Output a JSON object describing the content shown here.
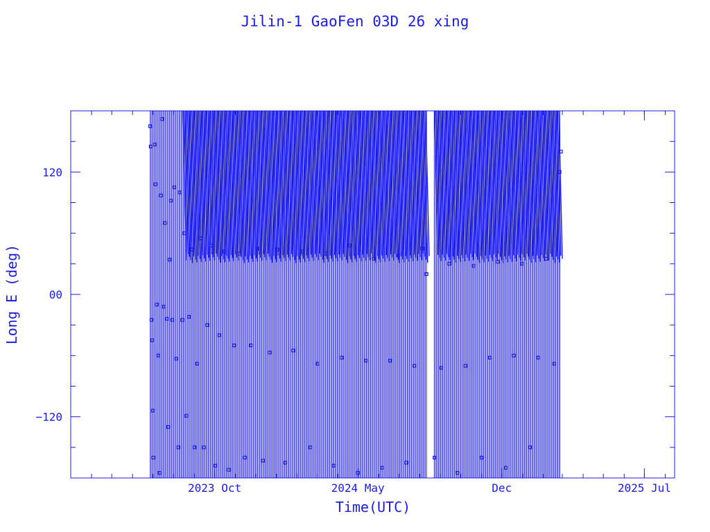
{
  "chart_data": {
    "type": "scatter",
    "title": "Jilin-1 GaoFen 03D 26 xing",
    "xlabel": "Time(UTC)",
    "ylabel": "Long E (deg)",
    "ylim": [
      -180,
      180
    ],
    "xlim": [
      "2023-03-01",
      "2025-08-15"
    ],
    "x_tick_labels": [
      {
        "label": "2023 Oct",
        "date": "2023-10-01"
      },
      {
        "label": "2024 May",
        "date": "2024-05-01"
      },
      {
        "label": "Dec",
        "date": "2024-12-01"
      },
      {
        "label": "2025 Jul",
        "date": "2025-07-01"
      }
    ],
    "y_tick_labels": [
      {
        "label": "120",
        "value": 120
      },
      {
        "label": "00",
        "value": 0
      },
      {
        "label": "−120",
        "value": -120
      }
    ],
    "y_minor_tick_values": [
      -150,
      -90,
      -60,
      -30,
      30,
      60,
      90,
      150
    ],
    "series_color": "#1a1ae6",
    "data_start": "2023-06-27",
    "data_end": "2025-02-27",
    "gap": [
      "2024-08-12",
      "2024-08-22"
    ],
    "points": [
      [
        "2023-06-27",
        165
      ],
      [
        "2023-06-28",
        145
      ],
      [
        "2023-06-29",
        -25
      ],
      [
        "2023-06-30",
        -45
      ],
      [
        "2023-07-01",
        -114
      ],
      [
        "2023-07-02",
        -160
      ],
      [
        "2023-07-04",
        147
      ],
      [
        "2023-07-05",
        108
      ],
      [
        "2023-07-07",
        -10
      ],
      [
        "2023-07-09",
        -60
      ],
      [
        "2023-07-11",
        -175
      ],
      [
        "2023-07-13",
        97
      ],
      [
        "2023-07-15",
        172
      ],
      [
        "2023-07-17",
        -12
      ],
      [
        "2023-07-19",
        70
      ],
      [
        "2023-07-22",
        -24
      ],
      [
        "2023-07-24",
        -130
      ],
      [
        "2023-07-26",
        34
      ],
      [
        "2023-07-28",
        92
      ],
      [
        "2023-07-30",
        -25
      ],
      [
        "2023-08-02",
        105
      ],
      [
        "2023-08-05",
        -63
      ],
      [
        "2023-08-08",
        -150
      ],
      [
        "2023-08-10",
        100
      ],
      [
        "2023-08-14",
        -25
      ],
      [
        "2023-08-17",
        60
      ],
      [
        "2023-08-20",
        -119
      ],
      [
        "2023-08-24",
        -22
      ],
      [
        "2023-08-28",
        44
      ],
      [
        "2023-09-01",
        -150
      ],
      [
        "2023-09-05",
        -68
      ],
      [
        "2023-09-10",
        55
      ],
      [
        "2023-09-15",
        -150
      ],
      [
        "2023-09-20",
        -30
      ],
      [
        "2023-09-26",
        48
      ],
      [
        "2023-10-02",
        -168
      ],
      [
        "2023-10-08",
        -40
      ],
      [
        "2023-10-15",
        42
      ],
      [
        "2023-10-22",
        -172
      ],
      [
        "2023-10-30",
        -50
      ],
      [
        "2023-11-07",
        40
      ],
      [
        "2023-11-15",
        -160
      ],
      [
        "2023-11-24",
        -50
      ],
      [
        "2023-12-03",
        45
      ],
      [
        "2023-12-12",
        -163
      ],
      [
        "2023-12-22",
        -57
      ],
      [
        "2024-01-02",
        44
      ],
      [
        "2024-01-14",
        -165
      ],
      [
        "2024-01-26",
        -55
      ],
      [
        "2024-02-08",
        42
      ],
      [
        "2024-02-20",
        -150
      ],
      [
        "2024-03-02",
        -68
      ],
      [
        "2024-03-14",
        40
      ],
      [
        "2024-03-26",
        -168
      ],
      [
        "2024-04-07",
        -62
      ],
      [
        "2024-04-19",
        48
      ],
      [
        "2024-05-01",
        -175
      ],
      [
        "2024-05-13",
        -65
      ],
      [
        "2024-05-25",
        35
      ],
      [
        "2024-06-06",
        -170
      ],
      [
        "2024-06-18",
        -65
      ],
      [
        "2024-06-30",
        38
      ],
      [
        "2024-07-12",
        -165
      ],
      [
        "2024-07-24",
        -70
      ],
      [
        "2024-08-05",
        45
      ],
      [
        "2024-08-11",
        20
      ],
      [
        "2024-08-23",
        -160
      ],
      [
        "2024-09-02",
        -72
      ],
      [
        "2024-09-14",
        30
      ],
      [
        "2024-09-26",
        -175
      ],
      [
        "2024-10-08",
        -70
      ],
      [
        "2024-10-20",
        28
      ],
      [
        "2024-11-01",
        -160
      ],
      [
        "2024-11-13",
        -62
      ],
      [
        "2024-11-25",
        32
      ],
      [
        "2024-12-07",
        -170
      ],
      [
        "2024-12-19",
        -60
      ],
      [
        "2024-12-31",
        30
      ],
      [
        "2025-01-12",
        -150
      ],
      [
        "2025-01-24",
        -62
      ],
      [
        "2025-02-05",
        35
      ],
      [
        "2025-02-17",
        -68
      ],
      [
        "2025-02-25",
        120
      ],
      [
        "2025-02-27",
        140
      ]
    ]
  }
}
